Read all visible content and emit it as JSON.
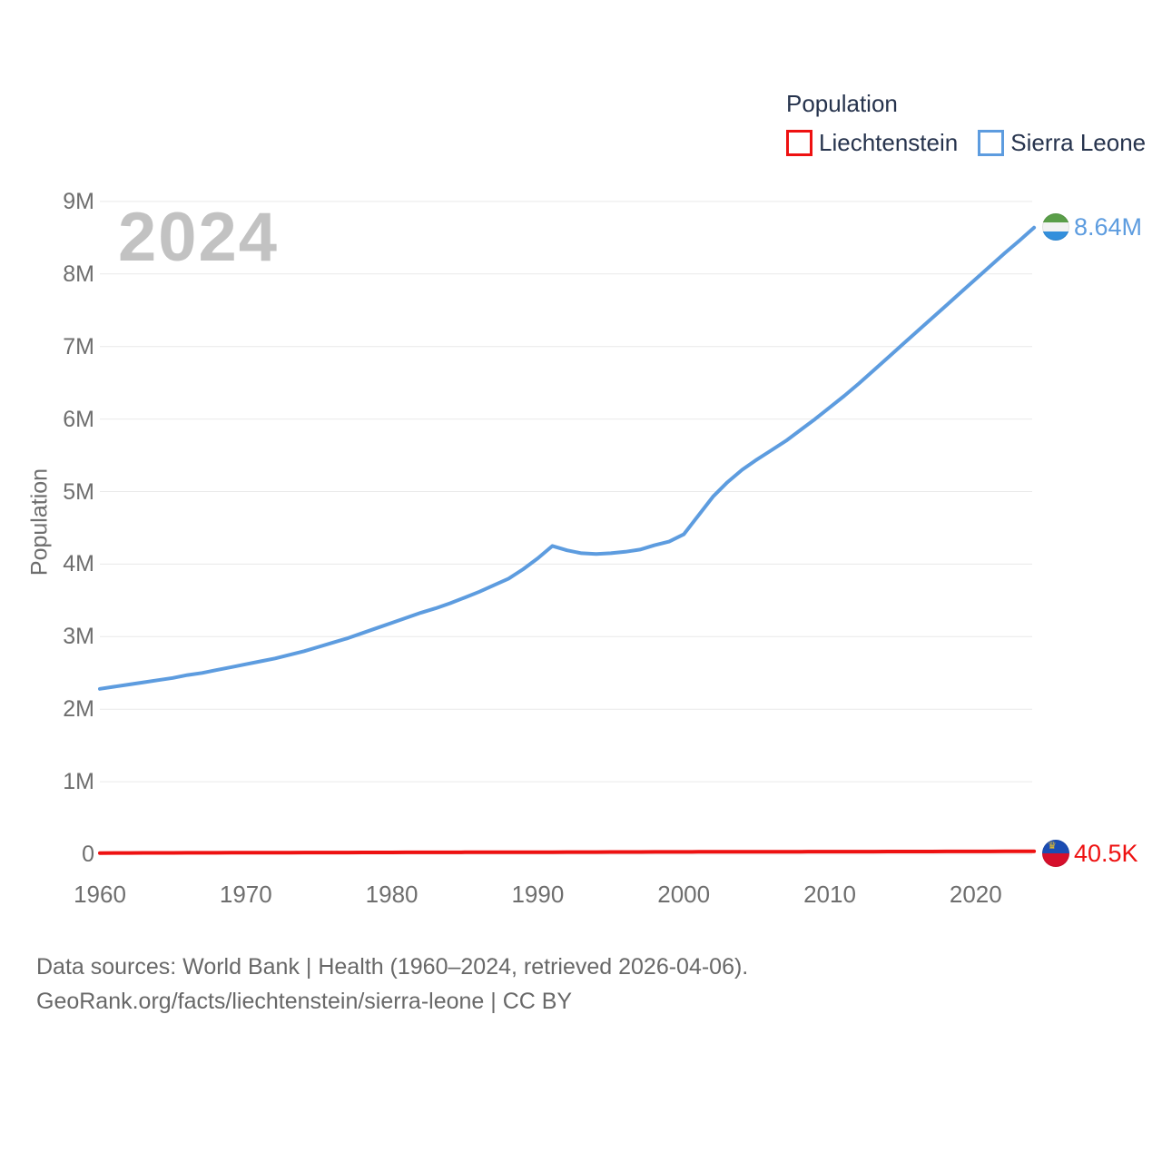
{
  "legend": {
    "title": "Population",
    "items": [
      {
        "label": "Liechtenstein",
        "color": "#ee1111"
      },
      {
        "label": "Sierra Leone",
        "color": "#5d9cdf"
      }
    ]
  },
  "watermark": "2024",
  "axes": {
    "y_title": "Population",
    "y_ticks": [
      "0",
      "1M",
      "2M",
      "3M",
      "4M",
      "5M",
      "6M",
      "7M",
      "8M",
      "9M"
    ],
    "x_ticks": [
      "1960",
      "1970",
      "1980",
      "1990",
      "2000",
      "2010",
      "2020"
    ]
  },
  "end_labels": {
    "sierra_leone": {
      "value": "8.64M",
      "icon": "sierra-leone-flag-icon"
    },
    "liechtenstein": {
      "value": "40.5K",
      "icon": "liechtenstein-flag-icon"
    }
  },
  "footer": {
    "line1": "Data sources: World Bank | Health (1960–2024, retrieved 2026-04-06).",
    "line2": "GeoRank.org/facts/liechtenstein/sierra-leone | CC BY"
  },
  "colors": {
    "liechtenstein": "#ee1111",
    "sierra_leone": "#5d9cdf",
    "legend_text": "#26334d",
    "axis_text": "#6e6e6e",
    "footer_text": "#686868",
    "watermark": "#c2c2c2",
    "gridline": "#e9e9e9"
  },
  "icons": {
    "sierra_leone_flag": {
      "green": "#5a9e49",
      "white": "#f2f2f2",
      "blue": "#338fdc"
    },
    "liechtenstein_flag": {
      "blue": "#1b4db3",
      "red": "#d6102c",
      "crown": "#f2c425"
    }
  },
  "chart_data": {
    "type": "line",
    "title": "Population",
    "xlabel": "",
    "ylabel": "Population",
    "unit": "millions",
    "ylim": [
      0,
      9
    ],
    "xlim": [
      1960,
      2024
    ],
    "grid": "horizontal",
    "legend_position": "top-right",
    "x": [
      1960,
      1961,
      1962,
      1963,
      1964,
      1965,
      1966,
      1967,
      1968,
      1969,
      1970,
      1971,
      1972,
      1973,
      1974,
      1975,
      1976,
      1977,
      1978,
      1979,
      1980,
      1981,
      1982,
      1983,
      1984,
      1985,
      1986,
      1987,
      1988,
      1989,
      1990,
      1991,
      1992,
      1993,
      1994,
      1995,
      1996,
      1997,
      1998,
      1999,
      2000,
      2001,
      2002,
      2003,
      2004,
      2005,
      2006,
      2007,
      2008,
      2009,
      2010,
      2011,
      2012,
      2013,
      2014,
      2015,
      2016,
      2017,
      2018,
      2019,
      2020,
      2021,
      2022,
      2023,
      2024
    ],
    "series": [
      {
        "name": "Sierra Leone",
        "color": "#5d9cdf",
        "end_label": "8.64M",
        "values": [
          2.28,
          2.31,
          2.34,
          2.37,
          2.4,
          2.43,
          2.47,
          2.5,
          2.54,
          2.58,
          2.62,
          2.66,
          2.7,
          2.75,
          2.8,
          2.86,
          2.92,
          2.98,
          3.05,
          3.12,
          3.19,
          3.26,
          3.33,
          3.39,
          3.46,
          3.54,
          3.62,
          3.71,
          3.8,
          3.93,
          4.08,
          4.25,
          4.19,
          4.15,
          4.14,
          4.15,
          4.17,
          4.2,
          4.26,
          4.31,
          4.41,
          4.67,
          4.93,
          5.13,
          5.3,
          5.44,
          5.57,
          5.7,
          5.85,
          6.0,
          6.16,
          6.32,
          6.49,
          6.67,
          6.85,
          7.03,
          7.21,
          7.39,
          7.57,
          7.75,
          7.93,
          8.11,
          8.29,
          8.46,
          8.64
        ]
      },
      {
        "name": "Liechtenstein",
        "color": "#ee1111",
        "end_label": "40.5K",
        "values": [
          0.0164,
          0.017,
          0.0176,
          0.0182,
          0.0187,
          0.0193,
          0.0197,
          0.0202,
          0.0206,
          0.021,
          0.0213,
          0.0218,
          0.0223,
          0.0228,
          0.0232,
          0.0237,
          0.024,
          0.0243,
          0.0247,
          0.025,
          0.0253,
          0.0257,
          0.026,
          0.0264,
          0.0267,
          0.0271,
          0.0275,
          0.0278,
          0.0282,
          0.0285,
          0.0289,
          0.0293,
          0.0297,
          0.0302,
          0.0306,
          0.0311,
          0.0315,
          0.0319,
          0.0323,
          0.0326,
          0.033,
          0.0334,
          0.0337,
          0.0341,
          0.0344,
          0.0348,
          0.0351,
          0.0353,
          0.0356,
          0.0358,
          0.0359,
          0.0362,
          0.0365,
          0.0368,
          0.0371,
          0.0374,
          0.0377,
          0.038,
          0.0383,
          0.0386,
          0.039,
          0.0392,
          0.0395,
          0.04,
          0.0405
        ]
      }
    ]
  }
}
